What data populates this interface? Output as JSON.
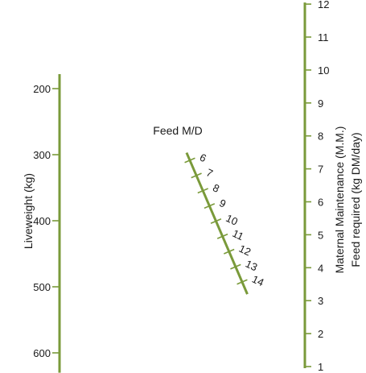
{
  "colors": {
    "scale": "#7a9a3a",
    "text": "#1a1a1a",
    "background": "#ffffff"
  },
  "liveweight": {
    "label": "Liveweight (kg)",
    "ticks": [
      "200",
      "300",
      "400",
      "500",
      "600"
    ],
    "values": [
      200,
      300,
      400,
      500,
      600
    ],
    "range": [
      178,
      630
    ]
  },
  "feed_md": {
    "label": "Feed M/D",
    "ticks": [
      "6",
      "7",
      "8",
      "9",
      "10",
      "11",
      "12",
      "13",
      "14"
    ],
    "values": [
      6,
      7,
      8,
      9,
      10,
      11,
      12,
      13,
      14
    ],
    "range": [
      5.5,
      14.8
    ]
  },
  "feed_required": {
    "label_line1": "Maternal Maintenance (M.M.)",
    "label_line2": "Feed required (kg DM/day)",
    "ticks": [
      "1",
      "2",
      "3",
      "4",
      "5",
      "6",
      "7",
      "8",
      "9",
      "10",
      "11",
      "12"
    ],
    "values": [
      1,
      2,
      3,
      4,
      5,
      6,
      7,
      8,
      9,
      10,
      11,
      12
    ],
    "range": [
      1,
      12
    ]
  }
}
